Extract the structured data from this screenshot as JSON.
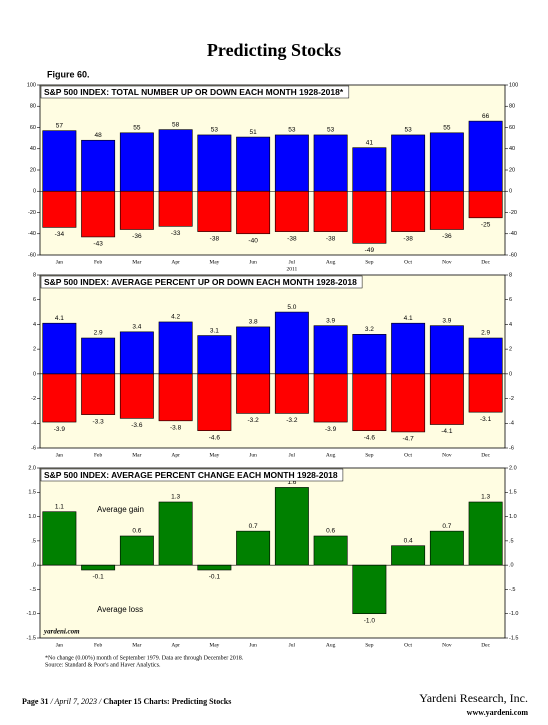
{
  "title": "Predicting Stocks",
  "figure_label": "Figure 60.",
  "footnotes": [
    "*No change (0.00%) month of September 1979. Data are through December 2018.",
    "Source: Standard & Poor's and Haver Analytics."
  ],
  "footer": {
    "page": "Page 31",
    "date": "/ April 7, 2023 /",
    "chapter": "Chapter 15 Charts: Predicting Stocks",
    "company": "Yardeni Research, Inc.",
    "website": "www.yardeni.com"
  },
  "chart_data": [
    {
      "type": "bar",
      "title": "S&P 500 INDEX: TOTAL NUMBER UP OR DOWN EACH MONTH 1928-2018*",
      "categories": [
        "Jan",
        "Feb",
        "Mar",
        "Apr",
        "May",
        "Jun",
        "Jul",
        "Aug",
        "Sep",
        "Oct",
        "Nov",
        "Dec"
      ],
      "x_annotation": "2011",
      "series": [
        {
          "color": "#0000ff",
          "values": [
            57,
            48,
            55,
            58,
            53,
            51,
            53,
            53,
            41,
            53,
            55,
            66
          ]
        },
        {
          "color": "#ff0000",
          "values": [
            -34,
            -43,
            -36,
            -33,
            -38,
            -40,
            -38,
            -38,
            -49,
            -38,
            -36,
            -25
          ]
        }
      ],
      "ylim": [
        -60,
        100
      ],
      "yticks": [
        -60,
        -40,
        -20,
        0,
        20,
        40,
        60,
        80,
        100
      ]
    },
    {
      "type": "bar",
      "title": "S&P 500 INDEX: AVERAGE PERCENT UP OR DOWN EACH MONTH 1928-2018",
      "categories": [
        "Jan",
        "Feb",
        "Mar",
        "Apr",
        "May",
        "Jun",
        "Jul",
        "Aug",
        "Sep",
        "Oct",
        "Nov",
        "Dec"
      ],
      "series": [
        {
          "color": "#0000ff",
          "values": [
            4.1,
            2.9,
            3.4,
            4.2,
            3.1,
            3.8,
            5.0,
            3.9,
            3.2,
            4.1,
            3.9,
            2.9
          ],
          "value_labels": [
            "4.1",
            "2.9",
            "3.4",
            "4.2",
            "3.1",
            "3.8",
            "5.0",
            "3.9",
            "3.2",
            "4.1",
            "3.9",
            "2.9"
          ]
        },
        {
          "color": "#ff0000",
          "values": [
            -3.9,
            -3.3,
            -3.6,
            -3.8,
            -4.6,
            -3.2,
            -3.2,
            -3.9,
            -4.6,
            -4.7,
            -4.1,
            -3.1
          ]
        }
      ],
      "ylim": [
        -6,
        8
      ],
      "yticks": [
        -6,
        -4,
        -2,
        0,
        2,
        4,
        6,
        8
      ]
    },
    {
      "type": "bar",
      "title": "S&P 500 INDEX: AVERAGE PERCENT CHANGE EACH MONTH 1928-2018",
      "categories": [
        "Jan",
        "Feb",
        "Mar",
        "Apr",
        "May",
        "Jun",
        "Jul",
        "Aug",
        "Sep",
        "Oct",
        "Nov",
        "Dec"
      ],
      "annotations": [
        "Average gain",
        "Average loss"
      ],
      "source_note": "yardeni.com",
      "series": [
        {
          "color": "#008000",
          "values": [
            1.1,
            -0.1,
            0.6,
            1.3,
            -0.1,
            0.7,
            1.6,
            0.6,
            -1.0,
            0.4,
            0.7,
            1.3
          ],
          "value_labels": [
            "1.1",
            "-0.1",
            "0.6",
            "1.3",
            "-0.1",
            "0.7",
            "1.6",
            "0.6",
            "-1.0",
            "0.4",
            "0.7",
            "1.3"
          ]
        }
      ],
      "ylim": [
        -1.5,
        2.0
      ],
      "yticks": [
        {
          "value": -1.5,
          "label": "-1.5"
        },
        {
          "value": -1.0,
          "label": "-1.0"
        },
        {
          "value": -0.5,
          "label": "-.5"
        },
        {
          "value": 0,
          "label": ".0"
        },
        {
          "value": 0.5,
          "label": ".5"
        },
        {
          "value": 1.0,
          "label": "1.0"
        },
        {
          "value": 1.5,
          "label": "1.5"
        },
        {
          "value": 2.0,
          "label": "2.0"
        }
      ]
    }
  ]
}
